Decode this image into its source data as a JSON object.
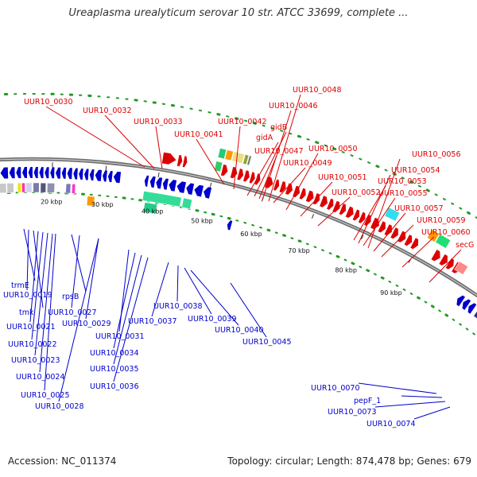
{
  "title": "Ureaplasma urealyticum serovar 10 str. ATCC 33699, complete ...",
  "footer": {
    "accession": "Accession: NC_011374",
    "summary": "Topology: circular; Length: 874,478 bp; Genes: 679"
  },
  "colors": {
    "forward_strand": "#dd0000",
    "reverse_strand": "#0000cc",
    "backbone": "#7a7a7a",
    "gc_dots": "#229922"
  },
  "scale_labels": [
    "20 kbp",
    "30 kbp",
    "40 kbp",
    "50 kbp",
    "60 kbp",
    "70 kbp",
    "80 kbp",
    "90 kbp"
  ],
  "red_labels": [
    "UUR10_0030",
    "UUR10_0032",
    "UUR10_0033",
    "UUR10_0041",
    "UUR10_0042",
    "gidA",
    "gidB",
    "UUR10_0047",
    "UUR10_0046",
    "UUR10_0048",
    "UUR10_0049",
    "UUR10_0050",
    "UUR10_0051",
    "UUR10_0052",
    "UUR10_0053",
    "UUR10_0054",
    "UUR10_0055",
    "UUR10_0056",
    "UUR10_0057",
    "UUR10_0059",
    "UUR10_0060",
    "secG"
  ],
  "blue_labels": [
    "trmE",
    "UUR10_0019",
    "tmk",
    "rpsB",
    "UUR10_0021",
    "UUR10_0027",
    "UUR10_0029",
    "UUR10_0022",
    "UUR10_0023",
    "UUR10_0024",
    "UUR10_0025",
    "UUR10_0028",
    "UUR10_0031",
    "UUR10_0034",
    "UUR10_0035",
    "UUR10_0036",
    "UUR10_0037",
    "UUR10_0038",
    "UUR10_0039",
    "UUR10_0040",
    "UUR10_0045",
    "UUR10_0070",
    "pepF_1",
    "UUR10_0073",
    "UUR10_0074"
  ]
}
